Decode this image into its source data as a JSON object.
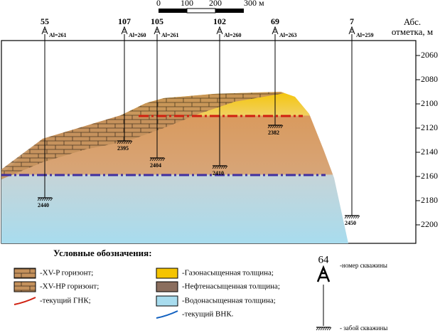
{
  "scale": {
    "labels": [
      "0",
      "100",
      "200",
      "300 м"
    ]
  },
  "axis": {
    "title": [
      "Абс.",
      "отметка, м"
    ],
    "ticks": [
      "2060",
      "2080",
      "2100",
      "2120",
      "2140",
      "2160",
      "2180",
      "2200"
    ]
  },
  "wells": [
    {
      "number": "55",
      "altitude": "Al=261",
      "bottom": "2440"
    },
    {
      "number": "107",
      "altitude": "Al=260",
      "bottom": "2395"
    },
    {
      "number": "105",
      "altitude": "Al=261",
      "bottom": "2404"
    },
    {
      "number": "102",
      "altitude": "Al=260",
      "bottom": "2410"
    },
    {
      "number": "69",
      "altitude": "Al=263",
      "bottom": "2382"
    },
    {
      "number": "7",
      "altitude": "Al=259",
      "bottom": "2450"
    }
  ],
  "legend": {
    "title": "Условные обозначения:",
    "items": [
      "-XV-P горизонт;",
      "-XV-HP горизонт;",
      "-текущий ГНК;",
      "-Газонасыщенная толщина;",
      "-Нефтенасыщенная толщина;",
      "-Водонасыщенная толщина;",
      "-текущий ВНК."
    ],
    "well_example": "64",
    "well_number_label": "-номер скважины",
    "well_bottom_label": "- забой скважины"
  }
}
